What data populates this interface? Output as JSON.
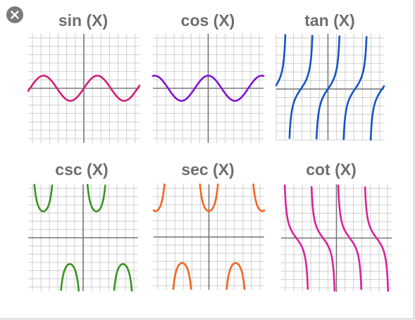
{
  "window": {
    "close_icon": "close-icon"
  },
  "colors": {
    "sin": "#d01f79",
    "cos": "#7f12d3",
    "tan": "#1455c6",
    "csc": "#3a9320",
    "sec": "#f06620",
    "cot": "#d9239b",
    "grid": "#cfcfcf",
    "axis": "#777777",
    "title": "#6e6e6e"
  },
  "chart_data": [
    {
      "type": "line",
      "title": "sin (X)",
      "function": "sin",
      "grid": true,
      "xlim": [
        -6.5,
        6.5
      ],
      "ylim": [
        -6.5,
        6.5
      ],
      "amplitude": 1.0,
      "x": [
        -6,
        -4.712,
        -3.142,
        -1.571,
        0,
        1.571,
        3.142,
        4.712,
        6
      ],
      "y": [
        0.279,
        1,
        0,
        -1,
        0,
        1,
        0,
        -1,
        -0.279
      ]
    },
    {
      "type": "line",
      "title": "cos (X)",
      "function": "cos",
      "grid": true,
      "xlim": [
        -6.5,
        6.5
      ],
      "ylim": [
        -6.5,
        6.5
      ],
      "amplitude": 1.0,
      "x": [
        -6,
        -4.712,
        -3.142,
        -1.571,
        0,
        1.571,
        3.142,
        4.712,
        6
      ],
      "y": [
        0.96,
        0,
        -1,
        0,
        1,
        0,
        -1,
        0,
        0.96
      ]
    },
    {
      "type": "line",
      "title": "tan (X)",
      "function": "tan",
      "grid": true,
      "xlim": [
        -6.0,
        6.5
      ],
      "ylim": [
        -6.0,
        6.5
      ],
      "asymptotes": [
        -4.712,
        -1.571,
        1.571,
        4.712
      ],
      "x": [
        -3.142,
        -0.785,
        0,
        0.785,
        3.142
      ],
      "y": [
        0,
        -1,
        0,
        1,
        0
      ]
    },
    {
      "type": "line",
      "title": "csc (X)",
      "function": "csc",
      "grid": true,
      "xlim": [
        -6.5,
        6.5
      ],
      "ylim": [
        -6.5,
        6.5
      ],
      "asymptotes": [
        -6.283,
        -3.142,
        0,
        3.142,
        6.283
      ],
      "x": [
        -4.712,
        -1.571,
        1.571,
        4.712
      ],
      "y": [
        1,
        -1,
        1,
        -1
      ]
    },
    {
      "type": "line",
      "title": "sec (X)",
      "function": "sec",
      "grid": true,
      "xlim": [
        -6.5,
        6.5
      ],
      "ylim": [
        -6.5,
        6.5
      ],
      "asymptotes": [
        -4.712,
        -1.571,
        1.571,
        4.712
      ],
      "x": [
        -3.142,
        0,
        3.142
      ],
      "y": [
        -1,
        1,
        -1
      ]
    },
    {
      "type": "line",
      "title": "cot (X)",
      "function": "cot",
      "grid": true,
      "xlim": [
        -6.5,
        6.5
      ],
      "ylim": [
        -6.5,
        6.5
      ],
      "asymptotes": [
        -6.283,
        -3.142,
        0,
        3.142,
        6.283
      ],
      "x": [
        -4.712,
        -1.571,
        1.571,
        4.712
      ],
      "y": [
        0,
        0,
        0,
        0
      ]
    }
  ]
}
